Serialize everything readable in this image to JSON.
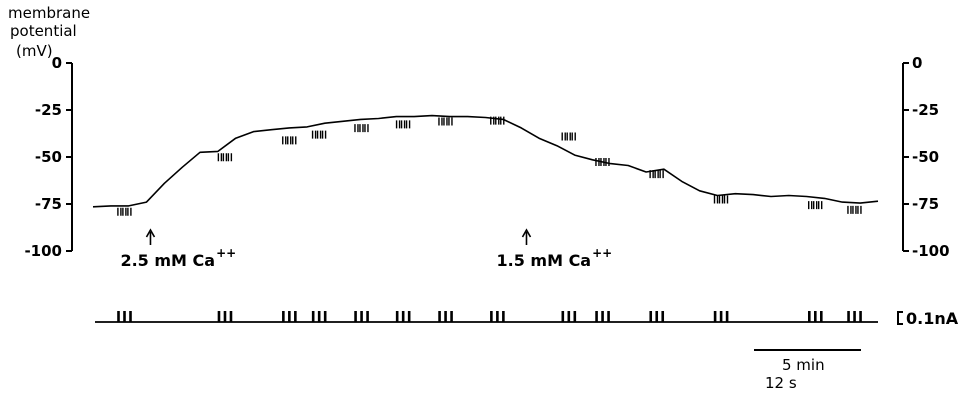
{
  "chart_data": {
    "type": "line",
    "ylabel_lines": [
      "membrane",
      "potential",
      "(mV)"
    ],
    "ylim": [
      -100,
      0
    ],
    "y_ticks": [
      "0",
      "-25",
      "-50",
      "-75",
      "-100"
    ],
    "series": [
      {
        "values": [
          -76.5,
          -76.0,
          -76.0,
          -74.0,
          -64.0,
          -55.5,
          -47.5,
          -47.0,
          -40.0,
          -36.5,
          -35.5,
          -34.5,
          -34.0,
          -32.0,
          -31.0,
          -30.0,
          -29.5,
          -28.5,
          -28.5,
          -28.0,
          -28.5,
          -28.5,
          -29.0,
          -30.0,
          -34.5,
          -40.0,
          -44.0,
          -49.0,
          -51.5,
          -53.5,
          -54.5,
          -58.0,
          -56.5,
          -63.0,
          -68.0,
          -70.5,
          -69.5,
          -70.0,
          -71.0,
          -70.5,
          -71.0,
          -72.0,
          -74.0,
          -74.5,
          -73.5
        ]
      }
    ],
    "current_pulses": [
      {
        "t_frac": 0.04,
        "v": -77.0,
        "n": 3
      },
      {
        "t_frac": 0.168,
        "v": -48.0,
        "n": 3
      },
      {
        "t_frac": 0.25,
        "v": -39.0,
        "n": 3
      },
      {
        "t_frac": 0.288,
        "v": -36.0,
        "n": 3
      },
      {
        "t_frac": 0.342,
        "v": -32.5,
        "n": 3
      },
      {
        "t_frac": 0.395,
        "v": -30.5,
        "n": 3
      },
      {
        "t_frac": 0.449,
        "v": -29.0,
        "n": 3
      },
      {
        "t_frac": 0.515,
        "v": -28.5,
        "n": 3
      },
      {
        "t_frac": 0.606,
        "v": -37.0,
        "n": 3
      },
      {
        "t_frac": 0.649,
        "v": -50.5,
        "n": 3
      },
      {
        "t_frac": 0.718,
        "v": -57.0,
        "n": 3
      },
      {
        "t_frac": 0.8,
        "v": -70.5,
        "n": 3
      },
      {
        "t_frac": 0.92,
        "v": -73.5,
        "n": 3
      },
      {
        "t_frac": 0.97,
        "v": -76.0,
        "n": 3
      }
    ],
    "annotations": [
      {
        "t_frac": 0.035,
        "text": "2.5 mM Ca",
        "superscript": "++"
      },
      {
        "t_frac": 0.514,
        "text": "1.5 mM Ca",
        "superscript": "++"
      }
    ],
    "current_scale_label": "0.1nA",
    "time_scale_labels": [
      "5 min",
      "12 s"
    ]
  }
}
